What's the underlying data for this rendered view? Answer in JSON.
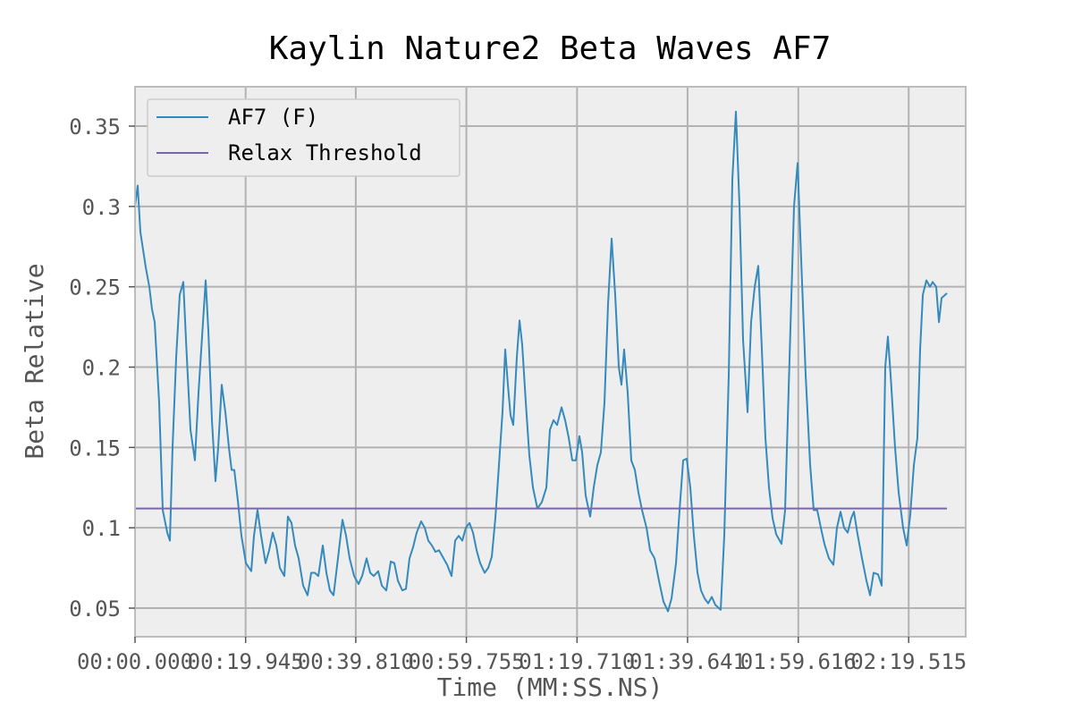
{
  "chart_data": {
    "type": "line",
    "title": "Kaylin Nature2 Beta Waves AF7",
    "x_label": "Time (MM:SS.NS)",
    "y_label": "Beta Relative",
    "xlim": [
      0,
      149.8
    ],
    "ylim": [
      0.0322,
      0.3745
    ],
    "xticks": [
      {
        "value": 0,
        "label": "00:00.000"
      },
      {
        "value": 19.945,
        "label": "00:19.945"
      },
      {
        "value": 39.81,
        "label": "00:39.810"
      },
      {
        "value": 59.755,
        "label": "00:59.755"
      },
      {
        "value": 79.71,
        "label": "01:19.710"
      },
      {
        "value": 99.641,
        "label": "01:39.641"
      },
      {
        "value": 119.616,
        "label": "01:59.616"
      },
      {
        "value": 139.515,
        "label": "02:19.515"
      }
    ],
    "yticks": [
      0.05,
      0.1,
      0.15,
      0.2,
      0.25,
      0.3,
      0.35
    ],
    "grid": true,
    "legend": "upper-left",
    "series": [
      {
        "name": "AF7 (F)",
        "color": "#348abd",
        "x": [
          0,
          0.48,
          0.97,
          1.94,
          2.58,
          3.06,
          3.55,
          4.35,
          5,
          5.81,
          6.29,
          6.77,
          7.42,
          8.06,
          8.71,
          9.19,
          10,
          10.8,
          11.45,
          12.26,
          12.74,
          13.22,
          13.87,
          14.51,
          15,
          15.64,
          16.29,
          16.93,
          17.42,
          17.9,
          18.54,
          19.19,
          20,
          20.96,
          21.45,
          22.09,
          22.74,
          23.54,
          24.19,
          24.83,
          25.48,
          26.12,
          26.93,
          27.57,
          28.22,
          28.86,
          29.51,
          30.32,
          31.12,
          31.77,
          32.41,
          33.06,
          33.86,
          34.51,
          35.15,
          35.8,
          36.6,
          37.41,
          38.06,
          38.7,
          39.51,
          40.31,
          40.96,
          41.76,
          42.41,
          43.05,
          43.86,
          44.51,
          45.31,
          46.12,
          46.76,
          47.41,
          48.21,
          48.86,
          49.5,
          50.15,
          50.79,
          51.6,
          52.25,
          52.89,
          53.54,
          54.18,
          54.83,
          55.47,
          56.28,
          57.08,
          57.73,
          58.37,
          59.02,
          59.66,
          60.31,
          60.95,
          61.6,
          62.24,
          63.05,
          63.69,
          64.34,
          64.98,
          65.63,
          66.27,
          66.76,
          67.24,
          67.72,
          68.21,
          68.85,
          69.34,
          69.82,
          70.47,
          71.11,
          71.76,
          72.56,
          73.37,
          74.18,
          74.82,
          75.47,
          76.11,
          76.92,
          77.56,
          78.21,
          78.85,
          79.5,
          80.14,
          80.63,
          81.27,
          82.08,
          82.72,
          83.37,
          84.01,
          84.66,
          85.3,
          85.95,
          86.59,
          87.24,
          87.72,
          88.2,
          88.85,
          89.49,
          90.14,
          90.78,
          91.43,
          92.24,
          92.88,
          93.69,
          94.49,
          95.3,
          96.11,
          96.75,
          97.56,
          98.2,
          98.85,
          99.49,
          100.14,
          100.78,
          101.43,
          102.07,
          102.72,
          103.36,
          104.01,
          104.65,
          105.62,
          106.26,
          107.07,
          107.72,
          108.36,
          109.01,
          109.65,
          110.46,
          111.1,
          111.75,
          112.39,
          113.04,
          113.68,
          114.33,
          114.97,
          115.62,
          116.58,
          117.23,
          118.04,
          118.84,
          119.49,
          120.13,
          120.94,
          121.75,
          122.39,
          123.03,
          123.68,
          124.32,
          125.13,
          125.94,
          126.58,
          127.23,
          127.87,
          128.52,
          129.16,
          129.65,
          130.29,
          131.1,
          131.91,
          132.55,
          133.19,
          134,
          134.65,
          135.29,
          135.77,
          136.26,
          137.06,
          137.71,
          138.51,
          139.16,
          139.8,
          140.45,
          141.09,
          141.58,
          142.07,
          142.71,
          143.36,
          143.84,
          144.48,
          144.97,
          145.45,
          146.42
        ],
        "values": [
          0.3,
          0.313,
          0.284,
          0.262,
          0.25,
          0.236,
          0.228,
          0.178,
          0.111,
          0.097,
          0.092,
          0.15,
          0.206,
          0.245,
          0.253,
          0.217,
          0.161,
          0.142,
          0.184,
          0.228,
          0.254,
          0.223,
          0.167,
          0.129,
          0.15,
          0.189,
          0.172,
          0.15,
          0.136,
          0.136,
          0.117,
          0.095,
          0.078,
          0.073,
          0.095,
          0.111,
          0.095,
          0.078,
          0.086,
          0.097,
          0.089,
          0.075,
          0.07,
          0.107,
          0.103,
          0.089,
          0.081,
          0.064,
          0.058,
          0.072,
          0.072,
          0.07,
          0.089,
          0.072,
          0.061,
          0.058,
          0.081,
          0.105,
          0.095,
          0.081,
          0.07,
          0.065,
          0.07,
          0.081,
          0.072,
          0.07,
          0.073,
          0.064,
          0.061,
          0.079,
          0.078,
          0.067,
          0.061,
          0.062,
          0.081,
          0.088,
          0.097,
          0.104,
          0.1,
          0.092,
          0.089,
          0.085,
          0.086,
          0.082,
          0.077,
          0.07,
          0.092,
          0.095,
          0.092,
          0.1,
          0.103,
          0.097,
          0.086,
          0.078,
          0.072,
          0.075,
          0.082,
          0.106,
          0.139,
          0.172,
          0.211,
          0.189,
          0.17,
          0.164,
          0.206,
          0.229,
          0.214,
          0.178,
          0.145,
          0.125,
          0.112,
          0.116,
          0.125,
          0.161,
          0.167,
          0.164,
          0.175,
          0.167,
          0.156,
          0.142,
          0.142,
          0.157,
          0.147,
          0.12,
          0.107,
          0.125,
          0.139,
          0.147,
          0.178,
          0.239,
          0.28,
          0.245,
          0.2,
          0.189,
          0.211,
          0.184,
          0.142,
          0.136,
          0.122,
          0.111,
          0.1,
          0.086,
          0.081,
          0.067,
          0.054,
          0.048,
          0.056,
          0.078,
          0.111,
          0.142,
          0.143,
          0.125,
          0.095,
          0.072,
          0.061,
          0.056,
          0.053,
          0.057,
          0.052,
          0.049,
          0.095,
          0.195,
          0.317,
          0.359,
          0.3,
          0.217,
          0.172,
          0.228,
          0.25,
          0.263,
          0.211,
          0.156,
          0.125,
          0.106,
          0.096,
          0.09,
          0.111,
          0.206,
          0.3,
          0.327,
          0.267,
          0.195,
          0.139,
          0.111,
          0.111,
          0.1,
          0.09,
          0.081,
          0.077,
          0.1,
          0.11,
          0.1,
          0.097,
          0.106,
          0.11,
          0.096,
          0.081,
          0.067,
          0.058,
          0.072,
          0.071,
          0.064,
          0.2,
          0.219,
          0.195,
          0.15,
          0.122,
          0.1,
          0.089,
          0.108,
          0.139,
          0.156,
          0.211,
          0.245,
          0.254,
          0.25,
          0.253,
          0.25,
          0.228,
          0.243,
          0.246
        ]
      },
      {
        "name": "Relax Threshold",
        "color": "#7a68a6",
        "x": [
          0,
          146.42
        ],
        "values": [
          0.112,
          0.112
        ]
      }
    ]
  }
}
